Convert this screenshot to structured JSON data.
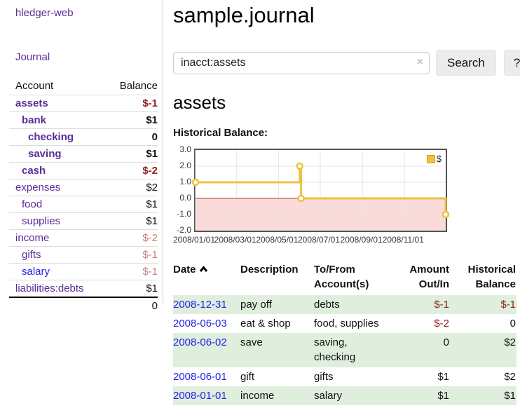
{
  "colors": {
    "link_purple": "#582d96",
    "link_blue": "#2323e8",
    "negative_dark": "#8f2020",
    "negative_muted": "#c4807f",
    "row_green": "#dfeedd",
    "series_gold": "#edc240",
    "negative_region_pink": "#fbdada",
    "zero_line_red": "#a33636",
    "plot_border": "#545454",
    "gridline": "#e7e7e7"
  },
  "sidebar": {
    "app_title": "hledger-web",
    "nav": {
      "journal_label": "Journal"
    },
    "accounts_table": {
      "headers": {
        "account": "Account",
        "balance": "Balance"
      },
      "rows": [
        {
          "name": "assets",
          "level": 1,
          "balance": "$-1",
          "selected": true,
          "link_state": "visited"
        },
        {
          "name": "bank",
          "level": 2,
          "balance": "$1",
          "selected": true,
          "link_state": "visited"
        },
        {
          "name": "checking",
          "level": 3,
          "balance": "0",
          "selected": true,
          "link_state": "visited"
        },
        {
          "name": "saving",
          "level": 3,
          "balance": "$1",
          "selected": true,
          "link_state": "visited"
        },
        {
          "name": "cash",
          "level": 2,
          "balance": "$-2",
          "selected": true,
          "link_state": "visited"
        },
        {
          "name": "expenses",
          "level": 1,
          "balance": "$2",
          "selected": false,
          "link_state": "visited"
        },
        {
          "name": "food",
          "level": 2,
          "balance": "$1",
          "selected": false,
          "link_state": "visited"
        },
        {
          "name": "supplies",
          "level": 2,
          "balance": "$1",
          "selected": false,
          "link_state": "visited"
        },
        {
          "name": "income",
          "level": 1,
          "balance": "$-2",
          "selected": false,
          "link_state": "visited"
        },
        {
          "name": "gifts",
          "level": 2,
          "balance": "$-1",
          "selected": false,
          "link_state": "visited"
        },
        {
          "name": "salary",
          "level": 2,
          "balance": "$-1",
          "selected": false,
          "link_state": "unvisited"
        },
        {
          "name": "liabilities:debts",
          "level": 1,
          "balance": "$1",
          "selected": false,
          "link_state": "visited"
        }
      ],
      "total": "0"
    }
  },
  "main": {
    "title": "sample.journal",
    "search": {
      "value": "inacct:assets",
      "clear_icon": "×",
      "button_label": "Search",
      "help_label": "?"
    },
    "account_heading": "assets",
    "chart_label": "Historical Balance:",
    "register": {
      "headers": [
        {
          "label": "Date",
          "align": "left",
          "sorted": "ascending"
        },
        {
          "label": "Description",
          "align": "left"
        },
        {
          "label": "To/From Account(s)",
          "align": "left"
        },
        {
          "label": "Amount Out/In",
          "align": "right"
        },
        {
          "label": "Historical Balance",
          "align": "right"
        }
      ],
      "rows": [
        {
          "date": "2008-12-31",
          "description": "pay off",
          "accounts": "debts",
          "amount": "$-1",
          "balance": "$-1"
        },
        {
          "date": "2008-06-03",
          "description": "eat & shop",
          "accounts": "food, supplies",
          "amount": "$-2",
          "balance": "0"
        },
        {
          "date": "2008-06-02",
          "description": "save",
          "accounts": "saving, checking",
          "amount": "0",
          "balance": "$2"
        },
        {
          "date": "2008-06-01",
          "description": "gift",
          "accounts": "gifts",
          "amount": "$1",
          "balance": "$2"
        },
        {
          "date": "2008-01-01",
          "description": "income",
          "accounts": "salary",
          "amount": "$1",
          "balance": "$1"
        }
      ]
    }
  },
  "chart_data": {
    "type": "line",
    "step": true,
    "title": "Historical Balance:",
    "series": [
      {
        "name": "$",
        "color": "#edc240",
        "points": [
          [
            "2008-01-01",
            1
          ],
          [
            "2008-06-01",
            2
          ],
          [
            "2008-06-03",
            0
          ],
          [
            "2008-12-31",
            -1
          ]
        ]
      }
    ],
    "x_range": [
      "2008-01-01",
      "2008-12-31"
    ],
    "x_ticks": [
      {
        "date": "2008-01-01",
        "label": "2008/01/01"
      },
      {
        "date": "2008-03-01",
        "label": "2008/03/01"
      },
      {
        "date": "2008-05-01",
        "label": "2008/05/01"
      },
      {
        "date": "2008-07-01",
        "label": "2008/07/01"
      },
      {
        "date": "2008-09-01",
        "label": "2008/09/01"
      },
      {
        "date": "2008-11-01",
        "label": "2008/11/01"
      }
    ],
    "y_ticks": [
      3.0,
      2.0,
      1.0,
      0.0,
      -1.0,
      -2.0
    ],
    "ylim": [
      -2,
      3
    ],
    "grid": true,
    "legend": {
      "position": "top-right",
      "label": "$"
    },
    "negative_region": {
      "below": 0,
      "fill": "#fbdada",
      "line": "#a33636"
    }
  }
}
